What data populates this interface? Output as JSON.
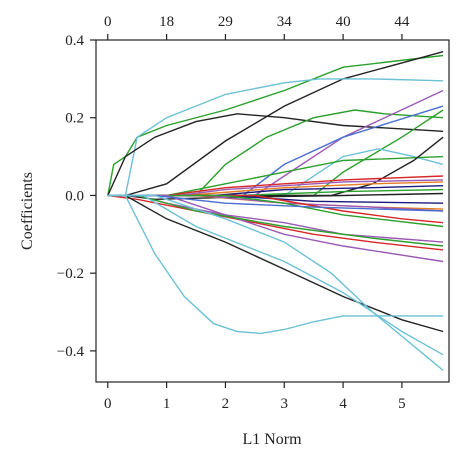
{
  "chart_data": {
    "type": "line",
    "title": "",
    "xlabel": "L1 Norm",
    "ylabel": "Coefficients",
    "xlim": [
      -0.2,
      5.8
    ],
    "ylim": [
      -0.48,
      0.4
    ],
    "x_ticks": [
      0,
      1,
      2,
      3,
      4,
      5
    ],
    "x_tick_labels": [
      "0",
      "1",
      "2",
      "3",
      "4",
      "5"
    ],
    "y_ticks": [
      0.4,
      0.2,
      0.0,
      -0.2,
      -0.4
    ],
    "y_tick_labels": [
      "0.4",
      "0.2",
      "0.0",
      "−0.2",
      "−0.4"
    ],
    "top_axis": {
      "ticks": [
        0,
        1,
        2,
        3,
        4,
        5
      ],
      "labels": [
        "0",
        "18",
        "29",
        "34",
        "40",
        "44"
      ]
    },
    "grid": false,
    "legend": "none",
    "series": [
      {
        "color": "#2ca02c",
        "points": [
          [
            0,
            0
          ],
          [
            0.1,
            0.08
          ],
          [
            0.3,
            0.1
          ],
          [
            0.5,
            0.15
          ],
          [
            1,
            0.18
          ],
          [
            2,
            0.22
          ],
          [
            3,
            0.27
          ],
          [
            4,
            0.33
          ],
          [
            5.7,
            0.36
          ]
        ]
      },
      {
        "color": "#222222",
        "points": [
          [
            0.3,
            0
          ],
          [
            1,
            0.03
          ],
          [
            2,
            0.14
          ],
          [
            3,
            0.23
          ],
          [
            4,
            0.3
          ],
          [
            5.7,
            0.37
          ]
        ]
      },
      {
        "color": "#6cc1d6",
        "points": [
          [
            0.3,
            0
          ],
          [
            0.5,
            0.15
          ],
          [
            1,
            0.2
          ],
          [
            2,
            0.26
          ],
          [
            3,
            0.29
          ],
          [
            3.6,
            0.3
          ],
          [
            4.5,
            0.3
          ],
          [
            5.7,
            0.295
          ]
        ]
      },
      {
        "color": "#222222",
        "points": [
          [
            0,
            0
          ],
          [
            0.3,
            0.1
          ],
          [
            0.8,
            0.15
          ],
          [
            1.5,
            0.19
          ],
          [
            2.2,
            0.21
          ],
          [
            3,
            0.2
          ],
          [
            4,
            0.18
          ],
          [
            5.7,
            0.165
          ]
        ]
      },
      {
        "color": "#2ca02c",
        "points": [
          [
            1.5,
            0
          ],
          [
            2,
            0.08
          ],
          [
            2.7,
            0.15
          ],
          [
            3.5,
            0.2
          ],
          [
            4.2,
            0.22
          ],
          [
            4.7,
            0.21
          ],
          [
            5.7,
            0.2
          ]
        ]
      },
      {
        "color": "#9b59b6",
        "points": [
          [
            2.5,
            0
          ],
          [
            3,
            0.05
          ],
          [
            4,
            0.15
          ],
          [
            5.7,
            0.27
          ]
        ]
      },
      {
        "color": "#2ca02c",
        "points": [
          [
            3.5,
            0
          ],
          [
            4,
            0.06
          ],
          [
            5,
            0.15
          ],
          [
            5.7,
            0.22
          ]
        ]
      },
      {
        "color": "#4a6fd0",
        "points": [
          [
            2.3,
            0
          ],
          [
            3,
            0.08
          ],
          [
            4,
            0.15
          ],
          [
            5.7,
            0.23
          ]
        ]
      },
      {
        "color": "#6cc1d6",
        "points": [
          [
            3,
            0
          ],
          [
            4,
            0.1
          ],
          [
            4.6,
            0.12
          ],
          [
            5.2,
            0.1
          ],
          [
            5.7,
            0.08
          ]
        ]
      },
      {
        "color": "#2ca02c",
        "points": [
          [
            1,
            0
          ],
          [
            2,
            0.03
          ],
          [
            3,
            0.06
          ],
          [
            4,
            0.09
          ],
          [
            5.7,
            0.1
          ]
        ]
      },
      {
        "color": "#222222",
        "points": [
          [
            3.8,
            0
          ],
          [
            4.5,
            0.03
          ],
          [
            5.2,
            0.09
          ],
          [
            5.7,
            0.15
          ]
        ]
      },
      {
        "color": "#d62728",
        "points": [
          [
            1,
            0
          ],
          [
            2,
            0.02
          ],
          [
            3,
            0.03
          ],
          [
            4,
            0.04
          ],
          [
            5.7,
            0.05
          ]
        ]
      },
      {
        "color": "#9b59b6",
        "points": [
          [
            1.2,
            0
          ],
          [
            2,
            0.015
          ],
          [
            3,
            0.025
          ],
          [
            4,
            0.035
          ],
          [
            5.7,
            0.04
          ]
        ]
      },
      {
        "color": "#e67e22",
        "points": [
          [
            1.3,
            0
          ],
          [
            3,
            0.02
          ],
          [
            4.5,
            0.03
          ],
          [
            5.7,
            0.035
          ]
        ]
      },
      {
        "color": "#1a1a80",
        "points": [
          [
            1.8,
            0
          ],
          [
            3,
            0.015
          ],
          [
            4.5,
            0.02
          ],
          [
            5.7,
            0.025
          ]
        ]
      },
      {
        "color": "#2ca02c",
        "points": [
          [
            2.2,
            0
          ],
          [
            4,
            0.01
          ],
          [
            5.7,
            0.015
          ]
        ]
      },
      {
        "color": "#222222",
        "points": [
          [
            0.3,
            0
          ],
          [
            0.8,
            -0.01
          ],
          [
            2,
            -0.005
          ],
          [
            4,
            0
          ],
          [
            5.7,
            0.005
          ]
        ]
      },
      {
        "color": "#e67e22",
        "points": [
          [
            1.5,
            0
          ],
          [
            3,
            -0.02
          ],
          [
            4.5,
            -0.03
          ],
          [
            5.7,
            -0.035
          ]
        ]
      },
      {
        "color": "#9b59b6",
        "points": [
          [
            1.6,
            0
          ],
          [
            3,
            -0.02
          ],
          [
            4.5,
            -0.03
          ],
          [
            5.7,
            -0.04
          ]
        ]
      },
      {
        "color": "#1a1a80",
        "points": [
          [
            2,
            0
          ],
          [
            3.5,
            -0.015
          ],
          [
            5.7,
            -0.02
          ]
        ]
      },
      {
        "color": "#d62728",
        "points": [
          [
            2.5,
            0
          ],
          [
            4,
            -0.04
          ],
          [
            5,
            -0.06
          ],
          [
            5.7,
            -0.07
          ]
        ]
      },
      {
        "color": "#2ca02c",
        "points": [
          [
            2,
            0
          ],
          [
            3,
            -0.02
          ],
          [
            4,
            -0.05
          ],
          [
            5.7,
            -0.08
          ]
        ]
      },
      {
        "color": "#9b59b6",
        "points": [
          [
            0.5,
            0
          ],
          [
            1,
            -0.02
          ],
          [
            2,
            -0.05
          ],
          [
            3,
            -0.07
          ],
          [
            4,
            -0.1
          ],
          [
            5.7,
            -0.12
          ]
        ]
      },
      {
        "color": "#d62728",
        "points": [
          [
            0,
            0
          ],
          [
            0.5,
            -0.01
          ],
          [
            1.5,
            -0.04
          ],
          [
            2.5,
            -0.07
          ],
          [
            3.5,
            -0.1
          ],
          [
            4.5,
            -0.12
          ],
          [
            5.7,
            -0.14
          ]
        ]
      },
      {
        "color": "#9b59b6",
        "points": [
          [
            1,
            0
          ],
          [
            2,
            -0.05
          ],
          [
            3,
            -0.1
          ],
          [
            4,
            -0.13
          ],
          [
            5.7,
            -0.17
          ]
        ]
      },
      {
        "color": "#2ca02c",
        "points": [
          [
            0.5,
            0
          ],
          [
            1.5,
            -0.04
          ],
          [
            3,
            -0.08
          ],
          [
            4.5,
            -0.11
          ],
          [
            5.7,
            -0.13
          ]
        ]
      },
      {
        "color": "#4a6fd0",
        "points": [
          [
            0.8,
            0
          ],
          [
            2,
            -0.02
          ],
          [
            3.5,
            -0.03
          ],
          [
            5.7,
            -0.04
          ]
        ]
      },
      {
        "color": "#222222",
        "points": [
          [
            0.3,
            0
          ],
          [
            1,
            -0.06
          ],
          [
            2,
            -0.12
          ],
          [
            3,
            -0.19
          ],
          [
            4,
            -0.26
          ],
          [
            5,
            -0.32
          ],
          [
            5.7,
            -0.35
          ]
        ]
      },
      {
        "color": "#6cc1d6",
        "points": [
          [
            0.3,
            0
          ],
          [
            0.8,
            -0.15
          ],
          [
            1.3,
            -0.26
          ],
          [
            1.8,
            -0.33
          ],
          [
            2.2,
            -0.35
          ],
          [
            2.6,
            -0.355
          ],
          [
            3,
            -0.345
          ],
          [
            3.5,
            -0.325
          ],
          [
            4,
            -0.31
          ],
          [
            5.7,
            -0.31
          ]
        ]
      },
      {
        "color": "#6cc1d6",
        "points": [
          [
            0.6,
            0
          ],
          [
            1.5,
            -0.08
          ],
          [
            3,
            -0.17
          ],
          [
            4,
            -0.25
          ],
          [
            5,
            -0.35
          ],
          [
            5.7,
            -0.41
          ]
        ]
      },
      {
        "color": "#6cc1d6",
        "points": [
          [
            0.8,
            0
          ],
          [
            2,
            -0.06
          ],
          [
            3,
            -0.12
          ],
          [
            3.8,
            -0.2
          ],
          [
            4.5,
            -0.3
          ],
          [
            5.7,
            -0.45
          ]
        ]
      }
    ]
  }
}
